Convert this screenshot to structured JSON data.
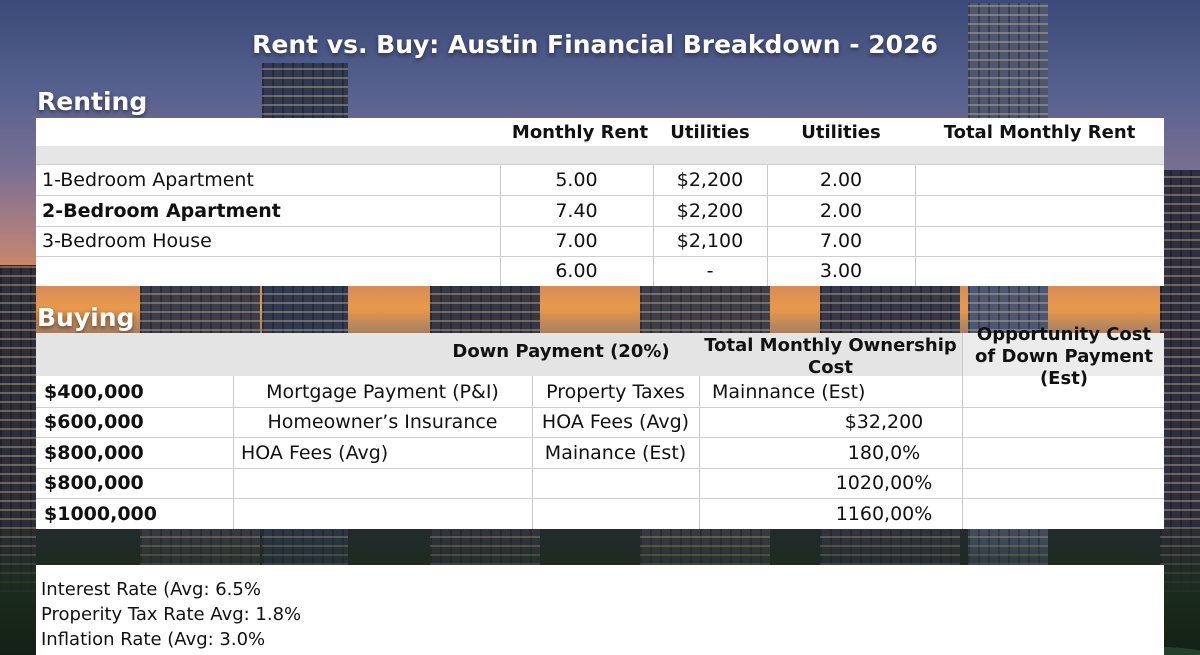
{
  "title": "Rent vs. Buy: Austin Financial Breakdown - 2026",
  "renting": {
    "label": "Renting",
    "headers": [
      "Monthly Rent",
      "Utilities",
      "Utilities",
      "Total Monthly Rent"
    ],
    "rows": [
      {
        "name": "1-Bedroom Apartment",
        "c1": "5.00",
        "c2": "$2,200",
        "c3": "2.00",
        "c4": ""
      },
      {
        "name": "2-Bedroom Apartment",
        "c1": "7.40",
        "c2": "$2,200",
        "c3": "2.00",
        "c4": ""
      },
      {
        "name": "3-Bedroom House",
        "c1": "7.00",
        "c2": "$2,100",
        "c3": "7.00",
        "c4": ""
      },
      {
        "name": "",
        "c1": "6.00",
        "c2": "-",
        "c3": "3.00",
        "c4": ""
      }
    ]
  },
  "buying": {
    "label": "Buying",
    "headers": {
      "down_payment": "Down Payment (20%)",
      "total_ownership": "Total Monthly Ownership Cost",
      "opportunity_cost": "Opportunity Cost of Down Payment (Est)"
    },
    "rows": [
      {
        "price": "$400,000",
        "c1": "Mortgage Payment (P&I)",
        "c2": "Property Taxes",
        "c3": "Mainnance (Est)",
        "c4": ""
      },
      {
        "price": "$600,000",
        "c1": "Homeowner’s Insurance",
        "c2": "HOA Fees (Avg)",
        "c3": "$32,200",
        "c4": ""
      },
      {
        "price": "$800,000",
        "c1": "HOA Fees (Avg)",
        "c2": "Mainance (Est)",
        "c3": "180,0%",
        "c4": ""
      },
      {
        "price": "$800,000",
        "c1": "",
        "c2": "",
        "c3": "1020,00%",
        "c4": ""
      },
      {
        "price": "$1000,000",
        "c1": "",
        "c2": "",
        "c3": "1160,00%",
        "c4": ""
      }
    ]
  },
  "notes": [
    "Interest Rate (Avg: 6.5%",
    "Properity Tax Rate Avg: 1.8%",
    "Inflation Rate (Avg: 3.0%"
  ]
}
